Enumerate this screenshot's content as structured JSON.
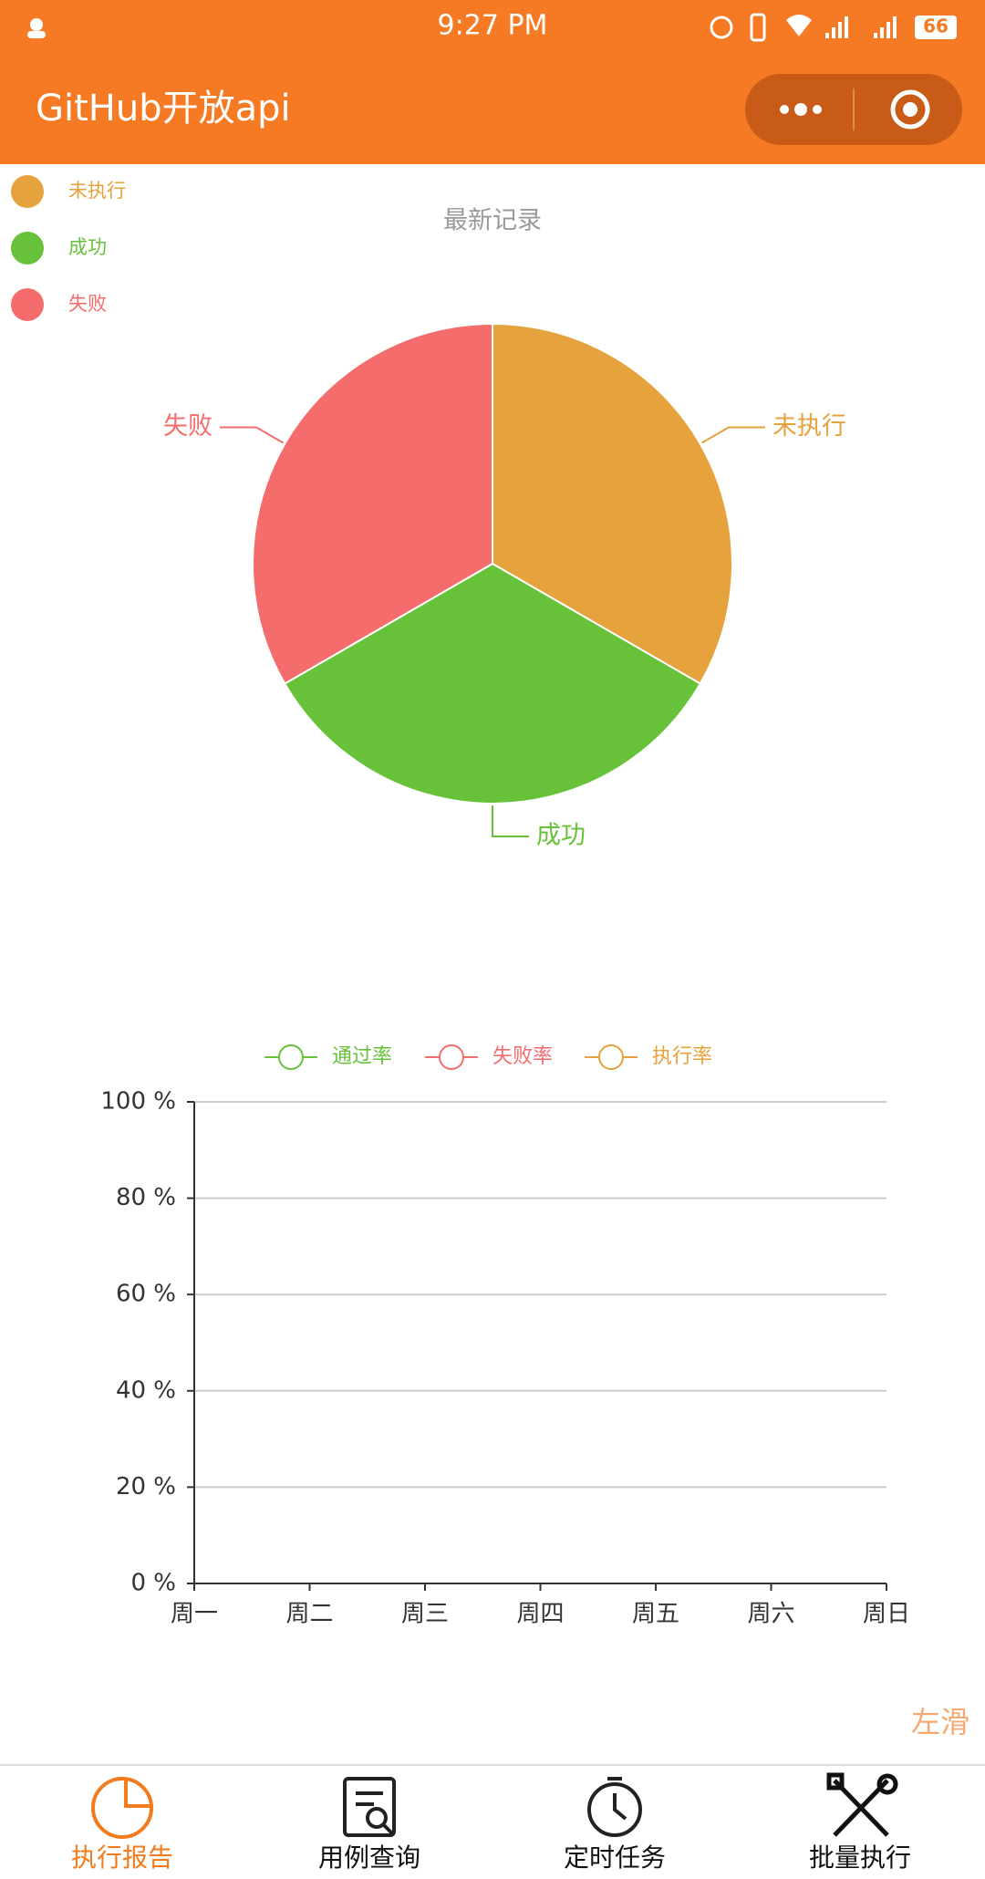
{
  "status_bar": {
    "time": "9:27 PM",
    "battery": "66"
  },
  "app_bar": {
    "title": "GitHub开放api"
  },
  "chart_data": [
    {
      "type": "pie",
      "title": "最新记录",
      "categories": [
        "未执行",
        "成功",
        "失败"
      ],
      "values": [
        1,
        1,
        1
      ],
      "colors": [
        "#E6A23C",
        "#67C23A",
        "#F56C6C"
      ],
      "legend": "top-left"
    },
    {
      "type": "line",
      "categories": [
        "周一",
        "周二",
        "周三",
        "周四",
        "周五",
        "周六",
        "周日"
      ],
      "series": [
        {
          "name": "通过率",
          "color": "#67C23A",
          "values": [
            null,
            null,
            null,
            null,
            null,
            null,
            null
          ]
        },
        {
          "name": "失败率",
          "color": "#F56C6C",
          "values": [
            null,
            null,
            null,
            null,
            null,
            null,
            null
          ]
        },
        {
          "name": "执行率",
          "color": "#E6A23C",
          "values": [
            null,
            null,
            null,
            null,
            null,
            null,
            null
          ]
        }
      ],
      "ylim": [
        0,
        100
      ],
      "yticks": [
        {
          "value": 0,
          "label": "0 %"
        },
        {
          "value": 20,
          "label": "20 %"
        },
        {
          "value": 40,
          "label": "40 %"
        },
        {
          "value": 60,
          "label": "60 %"
        },
        {
          "value": 80,
          "label": "80 %"
        },
        {
          "value": 100,
          "label": "100 %"
        }
      ],
      "grid": true,
      "legend": "top"
    }
  ],
  "hint": "左滑",
  "tab_bar": {
    "items": [
      "执行报告",
      "用例查询",
      "定时任务",
      "批量执行"
    ]
  }
}
